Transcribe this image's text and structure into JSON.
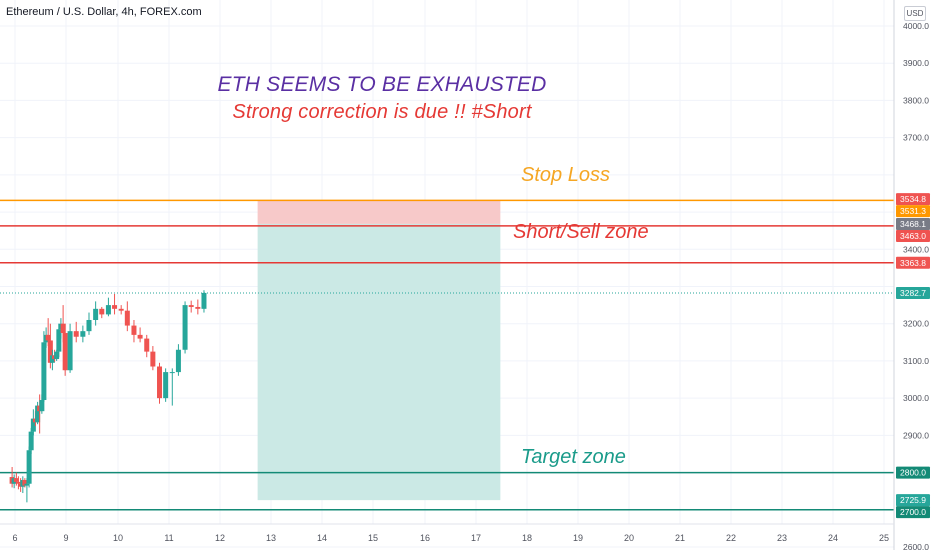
{
  "header": {
    "symbol_title": "Ethereum / U.S. Dollar, 4h, FOREX.com",
    "currency": "USD"
  },
  "annotations": {
    "headline_1": "ETH SEEMS TO BE EXHAUSTED",
    "headline_2": "Strong correction is due !! #Short",
    "stop_loss_label": "Stop Loss",
    "sell_zone_label": "Short/Sell zone",
    "target_zone_label": "Target zone"
  },
  "colors": {
    "up": "#26a69a",
    "down": "#ef5350",
    "stop_line": "#ff9800",
    "sell_line": "#e53935",
    "target_line": "#138a76",
    "loss_box": "#f7c9c9",
    "profit_box": "#cbe9e5",
    "grid": "#f0f3fa",
    "axis_text": "#50535e"
  },
  "chart_data": {
    "type": "candlestick",
    "x_tick_labels": [
      "6",
      "9",
      "10",
      "11",
      "12",
      "13",
      "14",
      "15",
      "16",
      "17",
      "18",
      "19",
      "20",
      "21",
      "22",
      "23",
      "24",
      "25"
    ],
    "y_tick_labels": [
      "4000.0",
      "3900.0",
      "3800.0",
      "3700.0",
      "3400.0",
      "3200.0",
      "3100.0",
      "3000.0",
      "2900.0",
      "2600.0"
    ],
    "y_ticks_all": [
      2600,
      2700,
      2800,
      2900,
      3000,
      3100,
      3200,
      3300,
      3400,
      3500,
      3600,
      3700,
      3800,
      3900,
      4000
    ],
    "ylim": [
      2570,
      4060
    ],
    "grid": true,
    "price_levels": [
      {
        "label": "3534.8",
        "value": 3534.8,
        "color": "#ef5350"
      },
      {
        "label": "3531.3",
        "value": 3531.3,
        "color": "#ff9800"
      },
      {
        "label": "3468.1",
        "value": 3468.1,
        "color": "#787b86"
      },
      {
        "label": "3463.0",
        "value": 3463.0,
        "color": "#ef5350"
      },
      {
        "label": "3363.8",
        "value": 3363.8,
        "color": "#ef5350"
      },
      {
        "label": "3282.7",
        "value": 3282.7,
        "color": "#26a69a"
      },
      {
        "label": "2800.0",
        "value": 2800.0,
        "color": "#138a76"
      },
      {
        "label": "2725.9",
        "value": 2725.9,
        "color": "#26a69a"
      },
      {
        "label": "2700.0",
        "value": 2700.0,
        "color": "#138a76"
      }
    ],
    "horizontal_lines": [
      {
        "value": 3531.3,
        "color": "#ff9800"
      },
      {
        "value": 3463.0,
        "color": "#e53935"
      },
      {
        "value": 3363.8,
        "color": "#e53935"
      },
      {
        "value": 2800.0,
        "color": "#138a76"
      },
      {
        "value": 2700.0,
        "color": "#138a76"
      }
    ],
    "position_tool": {
      "entry": 3468.1,
      "stop": 3531.3,
      "target": 2725.9,
      "from_date": 12.75,
      "to_date": 17.5
    },
    "candles": [
      {
        "date": 5.83,
        "o": 2788,
        "h": 2815,
        "l": 2760,
        "c": 2770
      },
      {
        "date": 5.95,
        "o": 2770,
        "h": 2795,
        "l": 2758,
        "c": 2785
      },
      {
        "date": 6.08,
        "o": 2785,
        "h": 2800,
        "l": 2765,
        "c": 2775
      },
      {
        "date": 6.2,
        "o": 2775,
        "h": 2790,
        "l": 2755,
        "c": 2770
      },
      {
        "date": 6.33,
        "o": 2770,
        "h": 2785,
        "l": 2748,
        "c": 2762
      },
      {
        "date": 6.46,
        "o": 2762,
        "h": 2790,
        "l": 2745,
        "c": 2780
      },
      {
        "date": 6.58,
        "o": 2780,
        "h": 2785,
        "l": 2760,
        "c": 2765
      },
      {
        "date": 6.7,
        "o": 2765,
        "h": 2785,
        "l": 2720,
        "c": 2770
      },
      {
        "date": 6.83,
        "o": 2770,
        "h": 2870,
        "l": 2760,
        "c": 2860
      },
      {
        "date": 6.95,
        "o": 2860,
        "h": 2920,
        "l": 2850,
        "c": 2910
      },
      {
        "date": 7.08,
        "o": 2910,
        "h": 2970,
        "l": 2900,
        "c": 2945
      },
      {
        "date": 7.2,
        "o": 2945,
        "h": 2965,
        "l": 2925,
        "c": 2935
      },
      {
        "date": 7.33,
        "o": 2935,
        "h": 2990,
        "l": 2930,
        "c": 2980
      },
      {
        "date": 7.45,
        "o": 2980,
        "h": 3010,
        "l": 2905,
        "c": 2965
      },
      {
        "date": 7.58,
        "o": 2965,
        "h": 3010,
        "l": 2958,
        "c": 2995
      },
      {
        "date": 7.7,
        "o": 2995,
        "h": 3180,
        "l": 2990,
        "c": 3150
      },
      {
        "date": 7.83,
        "o": 3150,
        "h": 3190,
        "l": 3135,
        "c": 3170
      },
      {
        "date": 7.95,
        "o": 3170,
        "h": 3215,
        "l": 3140,
        "c": 3155
      },
      {
        "date": 8.08,
        "o": 3155,
        "h": 3200,
        "l": 3080,
        "c": 3095
      },
      {
        "date": 8.2,
        "o": 3095,
        "h": 3130,
        "l": 3075,
        "c": 3115
      },
      {
        "date": 8.33,
        "o": 3115,
        "h": 3130,
        "l": 3098,
        "c": 3105
      },
      {
        "date": 8.45,
        "o": 3105,
        "h": 3130,
        "l": 3100,
        "c": 3125
      },
      {
        "date": 8.58,
        "o": 3125,
        "h": 3200,
        "l": 3110,
        "c": 3185
      },
      {
        "date": 8.7,
        "o": 3185,
        "h": 3215,
        "l": 3160,
        "c": 3200
      },
      {
        "date": 8.83,
        "o": 3200,
        "h": 3250,
        "l": 3150,
        "c": 3175
      },
      {
        "date": 8.95,
        "o": 3175,
        "h": 3200,
        "l": 3060,
        "c": 3075
      },
      {
        "date": 9.08,
        "o": 3075,
        "h": 3200,
        "l": 3068,
        "c": 3180
      },
      {
        "date": 9.2,
        "o": 3180,
        "h": 3205,
        "l": 3150,
        "c": 3165
      },
      {
        "date": 9.33,
        "o": 3165,
        "h": 3195,
        "l": 3150,
        "c": 3180
      },
      {
        "date": 9.45,
        "o": 3180,
        "h": 3230,
        "l": 3170,
        "c": 3210
      },
      {
        "date": 9.58,
        "o": 3210,
        "h": 3260,
        "l": 3195,
        "c": 3240
      },
      {
        "date": 9.7,
        "o": 3240,
        "h": 3245,
        "l": 3215,
        "c": 3225
      },
      {
        "date": 9.83,
        "o": 3225,
        "h": 3270,
        "l": 3220,
        "c": 3250
      },
      {
        "date": 9.95,
        "o": 3250,
        "h": 3280,
        "l": 3225,
        "c": 3240
      },
      {
        "date": 10.08,
        "o": 3240,
        "h": 3250,
        "l": 3225,
        "c": 3235
      },
      {
        "date": 10.2,
        "o": 3235,
        "h": 3260,
        "l": 3180,
        "c": 3195
      },
      {
        "date": 10.33,
        "o": 3195,
        "h": 3210,
        "l": 3150,
        "c": 3170
      },
      {
        "date": 10.45,
        "o": 3170,
        "h": 3190,
        "l": 3150,
        "c": 3160
      },
      {
        "date": 10.58,
        "o": 3160,
        "h": 3170,
        "l": 3110,
        "c": 3125
      },
      {
        "date": 10.7,
        "o": 3125,
        "h": 3140,
        "l": 3075,
        "c": 3085
      },
      {
        "date": 10.83,
        "o": 3085,
        "h": 3095,
        "l": 2985,
        "c": 3000
      },
      {
        "date": 10.95,
        "o": 3000,
        "h": 3080,
        "l": 2990,
        "c": 3070
      },
      {
        "date": 11.08,
        "o": 3070,
        "h": 3080,
        "l": 2980,
        "c": 3070
      },
      {
        "date": 11.2,
        "o": 3070,
        "h": 3145,
        "l": 3060,
        "c": 3130
      },
      {
        "date": 11.33,
        "o": 3130,
        "h": 3260,
        "l": 3120,
        "c": 3250
      },
      {
        "date": 11.45,
        "o": 3250,
        "h": 3262,
        "l": 3230,
        "c": 3245
      },
      {
        "date": 11.58,
        "o": 3245,
        "h": 3265,
        "l": 3225,
        "c": 3240
      },
      {
        "date": 11.7,
        "o": 3240,
        "h": 3290,
        "l": 3230,
        "c": 3282.7
      }
    ]
  }
}
